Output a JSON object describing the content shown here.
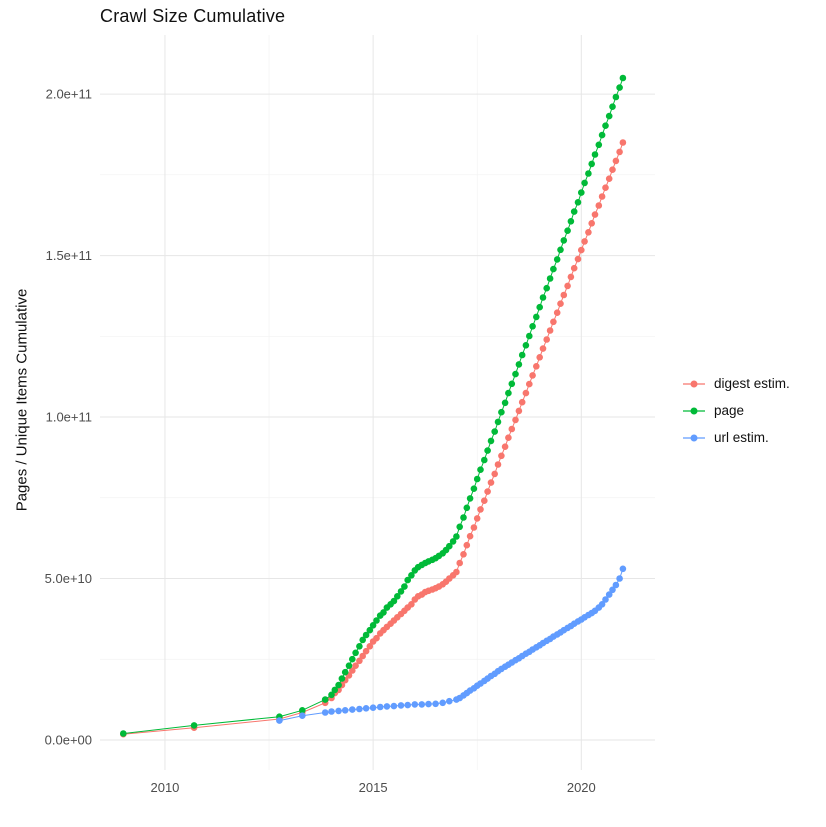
{
  "chart_data": {
    "type": "scatter",
    "title": "Crawl Size Cumulative",
    "xlabel": "",
    "ylabel": "Pages / Unique Items Cumulative",
    "grid": true,
    "legend_position": "right",
    "xlim": [
      2008.44,
      2021.77
    ],
    "ylim": [
      -9300000000.0,
      218300000000.0
    ],
    "x_ticks": {
      "values": [
        2010,
        2015,
        2020
      ],
      "labels": [
        "2010",
        "2015",
        "2020"
      ]
    },
    "x_minor_ticks": [
      2012.5,
      2017.5
    ],
    "y_ticks": {
      "values": [
        0,
        50000000000.0,
        100000000000.0,
        150000000000.0,
        200000000000.0
      ],
      "labels": [
        "0.0e+00",
        "5.0e+10",
        "1.0e+11",
        "1.5e+11",
        "2.0e+11"
      ]
    },
    "y_minor_ticks": [
      25000000000.0,
      75000000000.0,
      125000000000.0,
      175000000000.0
    ],
    "colors": {
      "grid_major": "#E6E6E6",
      "grid_minor": "#F2F2F2",
      "tick_text": "#4D4D4D",
      "title_text": "#111111"
    },
    "series": [
      {
        "name": "digest estim.",
        "color": "#F8766D",
        "points": [
          [
            2009.0,
            1800000000.0
          ],
          [
            2010.7,
            3800000000.0
          ],
          [
            2012.75,
            6500000000.0
          ],
          [
            2013.3,
            8500000000.0
          ],
          [
            2013.85,
            11500000000.0
          ],
          [
            2014.0,
            13000000000.0
          ],
          [
            2014.08,
            14500000000.0
          ],
          [
            2014.17,
            15500000000.0
          ],
          [
            2014.25,
            17000000000.0
          ],
          [
            2014.33,
            18500000000.0
          ],
          [
            2014.42,
            20000000000.0
          ],
          [
            2014.5,
            21500000000.0
          ],
          [
            2014.58,
            23000000000.0
          ],
          [
            2014.67,
            24500000000.0
          ],
          [
            2014.75,
            26000000000.0
          ],
          [
            2014.83,
            27500000000.0
          ],
          [
            2014.92,
            29000000000.0
          ],
          [
            2015.0,
            30500000000.0
          ],
          [
            2015.08,
            31500000000.0
          ],
          [
            2015.17,
            33000000000.0
          ],
          [
            2015.25,
            34000000000.0
          ],
          [
            2015.33,
            35000000000.0
          ],
          [
            2015.42,
            36000000000.0
          ],
          [
            2015.5,
            37000000000.0
          ],
          [
            2015.58,
            38000000000.0
          ],
          [
            2015.67,
            39000000000.0
          ],
          [
            2015.75,
            40000000000.0
          ],
          [
            2015.83,
            41000000000.0
          ],
          [
            2015.92,
            42000000000.0
          ],
          [
            2016.0,
            43500000000.0
          ],
          [
            2016.08,
            44500000000.0
          ],
          [
            2016.17,
            45000000000.0
          ],
          [
            2016.25,
            45800000000.0
          ],
          [
            2016.33,
            46200000000.0
          ],
          [
            2016.42,
            46600000000.0
          ],
          [
            2016.5,
            47000000000.0
          ],
          [
            2016.58,
            47500000000.0
          ],
          [
            2016.67,
            48200000000.0
          ],
          [
            2016.75,
            49000000000.0
          ],
          [
            2016.83,
            50000000000.0
          ],
          [
            2016.92,
            51000000000.0
          ],
          [
            2017.0,
            52000000000.0
          ],
          [
            2017.08,
            54800000000.0
          ],
          [
            2017.17,
            57500000000.0
          ],
          [
            2017.25,
            60300000000.0
          ],
          [
            2017.33,
            63100000000.0
          ],
          [
            2017.42,
            65800000000.0
          ],
          [
            2017.5,
            68600000000.0
          ],
          [
            2017.58,
            71400000000.0
          ],
          [
            2017.67,
            74100000000.0
          ],
          [
            2017.75,
            76900000000.0
          ],
          [
            2017.83,
            79700000000.0
          ],
          [
            2017.92,
            82400000000.0
          ],
          [
            2018.0,
            85300000000.0
          ],
          [
            2018.08,
            88000000000.0
          ],
          [
            2018.17,
            90800000000.0
          ],
          [
            2018.25,
            93600000000.0
          ],
          [
            2018.33,
            96300000000.0
          ],
          [
            2018.42,
            99100000000.0
          ],
          [
            2018.5,
            101900000000.0
          ],
          [
            2018.58,
            104600000000.0
          ],
          [
            2018.67,
            107400000000.0
          ],
          [
            2018.75,
            110200000000.0
          ],
          [
            2018.83,
            112900000000.0
          ],
          [
            2018.92,
            115700000000.0
          ],
          [
            2019.0,
            118500000000.0
          ],
          [
            2019.08,
            121200000000.0
          ],
          [
            2019.17,
            124000000000.0
          ],
          [
            2019.25,
            126800000000.0
          ],
          [
            2019.33,
            129500000000.0
          ],
          [
            2019.42,
            132300000000.0
          ],
          [
            2019.5,
            135100000000.0
          ],
          [
            2019.58,
            137800000000.0
          ],
          [
            2019.67,
            140600000000.0
          ],
          [
            2019.75,
            143400000000.0
          ],
          [
            2019.83,
            146100000000.0
          ],
          [
            2019.92,
            148900000000.0
          ],
          [
            2020.0,
            151700000000.0
          ],
          [
            2020.08,
            154400000000.0
          ],
          [
            2020.17,
            157200000000.0
          ],
          [
            2020.25,
            160000000000.0
          ],
          [
            2020.33,
            162700000000.0
          ],
          [
            2020.42,
            165500000000.0
          ],
          [
            2020.5,
            168300000000.0
          ],
          [
            2020.58,
            171000000000.0
          ],
          [
            2020.67,
            173800000000.0
          ],
          [
            2020.75,
            176600000000.0
          ],
          [
            2020.83,
            179300000000.0
          ],
          [
            2020.92,
            182100000000.0
          ],
          [
            2021.0,
            185000000000.0
          ]
        ]
      },
      {
        "name": "page",
        "color": "#00BA38",
        "points": [
          [
            2009.0,
            2000000000.0
          ],
          [
            2010.7,
            4500000000.0
          ],
          [
            2012.75,
            7200000000.0
          ],
          [
            2013.3,
            9200000000.0
          ],
          [
            2013.85,
            12500000000.0
          ],
          [
            2014.0,
            14000000000.0
          ],
          [
            2014.08,
            15500000000.0
          ],
          [
            2014.17,
            17000000000.0
          ],
          [
            2014.25,
            19000000000.0
          ],
          [
            2014.33,
            21000000000.0
          ],
          [
            2014.42,
            23000000000.0
          ],
          [
            2014.5,
            25000000000.0
          ],
          [
            2014.58,
            27000000000.0
          ],
          [
            2014.67,
            29000000000.0
          ],
          [
            2014.75,
            31000000000.0
          ],
          [
            2014.83,
            32500000000.0
          ],
          [
            2014.92,
            34000000000.0
          ],
          [
            2015.0,
            35500000000.0
          ],
          [
            2015.08,
            37000000000.0
          ],
          [
            2015.17,
            38500000000.0
          ],
          [
            2015.25,
            39500000000.0
          ],
          [
            2015.33,
            41000000000.0
          ],
          [
            2015.42,
            42000000000.0
          ],
          [
            2015.5,
            43000000000.0
          ],
          [
            2015.58,
            44500000000.0
          ],
          [
            2015.67,
            46000000000.0
          ],
          [
            2015.75,
            47500000000.0
          ],
          [
            2015.83,
            49500000000.0
          ],
          [
            2015.92,
            51000000000.0
          ],
          [
            2016.0,
            52500000000.0
          ],
          [
            2016.08,
            53500000000.0
          ],
          [
            2016.17,
            54200000000.0
          ],
          [
            2016.25,
            54800000000.0
          ],
          [
            2016.33,
            55300000000.0
          ],
          [
            2016.42,
            55800000000.0
          ],
          [
            2016.5,
            56300000000.0
          ],
          [
            2016.58,
            57000000000.0
          ],
          [
            2016.67,
            57800000000.0
          ],
          [
            2016.75,
            58800000000.0
          ],
          [
            2016.83,
            60000000000.0
          ],
          [
            2016.92,
            61500000000.0
          ],
          [
            2017.0,
            63000000000.0
          ],
          [
            2017.08,
            66000000000.0
          ],
          [
            2017.17,
            68900000000.0
          ],
          [
            2017.25,
            71900000000.0
          ],
          [
            2017.33,
            74800000000.0
          ],
          [
            2017.42,
            77800000000.0
          ],
          [
            2017.5,
            80800000000.0
          ],
          [
            2017.58,
            83700000000.0
          ],
          [
            2017.67,
            86700000000.0
          ],
          [
            2017.75,
            89600000000.0
          ],
          [
            2017.83,
            92600000000.0
          ],
          [
            2017.92,
            95500000000.0
          ],
          [
            2018.0,
            98500000000.0
          ],
          [
            2018.08,
            101500000000.0
          ],
          [
            2018.17,
            104400000000.0
          ],
          [
            2018.25,
            107400000000.0
          ],
          [
            2018.33,
            110300000000.0
          ],
          [
            2018.42,
            113300000000.0
          ],
          [
            2018.5,
            116300000000.0
          ],
          [
            2018.58,
            119200000000.0
          ],
          [
            2018.67,
            122200000000.0
          ],
          [
            2018.75,
            125100000000.0
          ],
          [
            2018.83,
            128100000000.0
          ],
          [
            2018.92,
            131000000000.0
          ],
          [
            2019.0,
            134000000000.0
          ],
          [
            2019.08,
            137000000000.0
          ],
          [
            2019.17,
            139900000000.0
          ],
          [
            2019.25,
            142900000000.0
          ],
          [
            2019.33,
            145800000000.0
          ],
          [
            2019.42,
            148800000000.0
          ],
          [
            2019.5,
            151800000000.0
          ],
          [
            2019.58,
            154700000000.0
          ],
          [
            2019.67,
            157700000000.0
          ],
          [
            2019.75,
            160600000000.0
          ],
          [
            2019.83,
            163600000000.0
          ],
          [
            2019.92,
            166500000000.0
          ],
          [
            2020.0,
            169500000000.0
          ],
          [
            2020.08,
            172500000000.0
          ],
          [
            2020.17,
            175400000000.0
          ],
          [
            2020.25,
            178400000000.0
          ],
          [
            2020.33,
            181300000000.0
          ],
          [
            2020.42,
            184300000000.0
          ],
          [
            2020.5,
            187300000000.0
          ],
          [
            2020.58,
            190200000000.0
          ],
          [
            2020.67,
            193200000000.0
          ],
          [
            2020.75,
            196100000000.0
          ],
          [
            2020.83,
            199100000000.0
          ],
          [
            2020.92,
            202000000000.0
          ],
          [
            2021.0,
            205000000000.0
          ]
        ]
      },
      {
        "name": "url estim.",
        "color": "#619CFF",
        "points": [
          [
            2012.75,
            6000000000.0
          ],
          [
            2013.3,
            7500000000.0
          ],
          [
            2013.85,
            8500000000.0
          ],
          [
            2014.0,
            8800000000.0
          ],
          [
            2014.17,
            9000000000.0
          ],
          [
            2014.33,
            9200000000.0
          ],
          [
            2014.5,
            9400000000.0
          ],
          [
            2014.67,
            9600000000.0
          ],
          [
            2014.83,
            9800000000.0
          ],
          [
            2015.0,
            10000000000.0
          ],
          [
            2015.17,
            10200000000.0
          ],
          [
            2015.33,
            10400000000.0
          ],
          [
            2015.5,
            10500000000.0
          ],
          [
            2015.67,
            10700000000.0
          ],
          [
            2015.83,
            10800000000.0
          ],
          [
            2016.0,
            11000000000.0
          ],
          [
            2016.17,
            11000000000.0
          ],
          [
            2016.33,
            11100000000.0
          ],
          [
            2016.5,
            11200000000.0
          ],
          [
            2016.67,
            11500000000.0
          ],
          [
            2016.83,
            12000000000.0
          ],
          [
            2017.0,
            12500000000.0
          ],
          [
            2017.08,
            13000000000.0
          ],
          [
            2017.17,
            13800000000.0
          ],
          [
            2017.25,
            14500000000.0
          ],
          [
            2017.33,
            15300000000.0
          ],
          [
            2017.42,
            16000000000.0
          ],
          [
            2017.5,
            16800000000.0
          ],
          [
            2017.58,
            17500000000.0
          ],
          [
            2017.67,
            18300000000.0
          ],
          [
            2017.75,
            19000000000.0
          ],
          [
            2017.83,
            19800000000.0
          ],
          [
            2017.92,
            20500000000.0
          ],
          [
            2018.0,
            21300000000.0
          ],
          [
            2018.08,
            22000000000.0
          ],
          [
            2018.17,
            22700000000.0
          ],
          [
            2018.25,
            23300000000.0
          ],
          [
            2018.33,
            24000000000.0
          ],
          [
            2018.42,
            24700000000.0
          ],
          [
            2018.5,
            25300000000.0
          ],
          [
            2018.58,
            26000000000.0
          ],
          [
            2018.67,
            26700000000.0
          ],
          [
            2018.75,
            27300000000.0
          ],
          [
            2018.83,
            28000000000.0
          ],
          [
            2018.92,
            28700000000.0
          ],
          [
            2019.0,
            29300000000.0
          ],
          [
            2019.08,
            30000000000.0
          ],
          [
            2019.17,
            30700000000.0
          ],
          [
            2019.25,
            31300000000.0
          ],
          [
            2019.33,
            32000000000.0
          ],
          [
            2019.42,
            32700000000.0
          ],
          [
            2019.5,
            33300000000.0
          ],
          [
            2019.58,
            34000000000.0
          ],
          [
            2019.67,
            34700000000.0
          ],
          [
            2019.75,
            35300000000.0
          ],
          [
            2019.83,
            36000000000.0
          ],
          [
            2019.92,
            36700000000.0
          ],
          [
            2020.0,
            37300000000.0
          ],
          [
            2020.08,
            38000000000.0
          ],
          [
            2020.17,
            38700000000.0
          ],
          [
            2020.25,
            39300000000.0
          ],
          [
            2020.33,
            40000000000.0
          ],
          [
            2020.42,
            41000000000.0
          ],
          [
            2020.5,
            42000000000.0
          ],
          [
            2020.58,
            43500000000.0
          ],
          [
            2020.67,
            45000000000.0
          ],
          [
            2020.75,
            46500000000.0
          ],
          [
            2020.83,
            48000000000.0
          ],
          [
            2020.92,
            50000000000.0
          ],
          [
            2021.0,
            53000000000.0
          ]
        ]
      }
    ]
  }
}
